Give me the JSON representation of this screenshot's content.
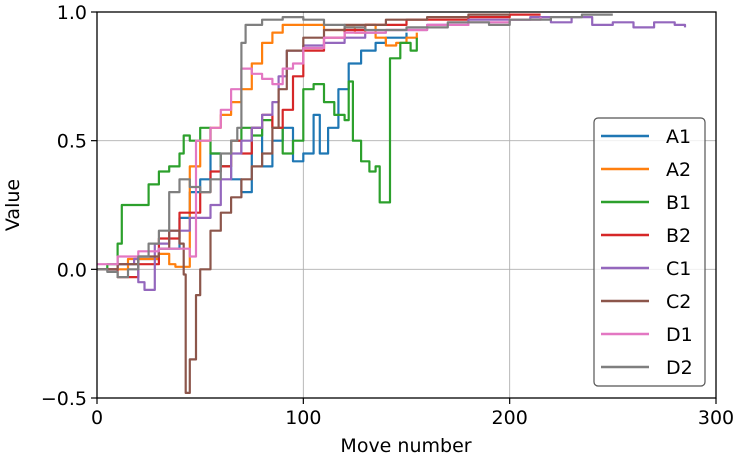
{
  "chart_data": {
    "type": "line",
    "title": "",
    "xlabel": "Move number",
    "ylabel": "Value",
    "xlim": [
      0,
      300
    ],
    "ylim": [
      -0.5,
      1.0
    ],
    "xticks": [
      0,
      100,
      200,
      300
    ],
    "xtick_labels": [
      "0",
      "100",
      "200",
      "300"
    ],
    "yticks": [
      -0.5,
      0.0,
      0.5,
      1.0
    ],
    "ytick_labels": [
      "−0.5",
      "0.0",
      "0.5",
      "1.0"
    ],
    "grid": true,
    "legend_position": "center right",
    "series": [
      {
        "name": "A1",
        "color": "#1f77b4",
        "points": [
          [
            0,
            0.0
          ],
          [
            10,
            0.02
          ],
          [
            20,
            0.04
          ],
          [
            30,
            0.08
          ],
          [
            40,
            0.2
          ],
          [
            45,
            0.3
          ],
          [
            50,
            0.35
          ],
          [
            55,
            0.45
          ],
          [
            60,
            0.4
          ],
          [
            65,
            0.35
          ],
          [
            70,
            0.3
          ],
          [
            75,
            0.55
          ],
          [
            80,
            0.4
          ],
          [
            85,
            0.5
          ],
          [
            90,
            0.55
          ],
          [
            95,
            0.42
          ],
          [
            100,
            0.45
          ],
          [
            105,
            0.6
          ],
          [
            108,
            0.45
          ],
          [
            112,
            0.55
          ],
          [
            117,
            0.7
          ],
          [
            122,
            0.8
          ],
          [
            128,
            0.85
          ],
          [
            135,
            0.88
          ],
          [
            140,
            0.9
          ],
          [
            150,
            0.92
          ]
        ]
      },
      {
        "name": "A2",
        "color": "#ff7f0e",
        "points": [
          [
            0,
            0.0
          ],
          [
            15,
            0.04
          ],
          [
            30,
            0.06
          ],
          [
            35,
            0.02
          ],
          [
            38,
            0.01
          ],
          [
            42,
            0.01
          ],
          [
            45,
            0.4
          ],
          [
            50,
            0.5
          ],
          [
            55,
            0.55
          ],
          [
            60,
            0.6
          ],
          [
            65,
            0.65
          ],
          [
            70,
            0.7
          ],
          [
            75,
            0.8
          ],
          [
            80,
            0.88
          ],
          [
            85,
            0.92
          ],
          [
            90,
            0.95
          ],
          [
            100,
            0.95
          ],
          [
            110,
            0.93
          ],
          [
            120,
            0.94
          ],
          [
            125,
            0.92
          ],
          [
            130,
            0.95
          ],
          [
            135,
            0.9
          ],
          [
            140,
            0.87
          ],
          [
            145,
            0.88
          ],
          [
            150,
            0.9
          ],
          [
            155,
            0.92
          ]
        ]
      },
      {
        "name": "B1",
        "color": "#2ca02c",
        "points": [
          [
            0,
            0.0
          ],
          [
            5,
            0.02
          ],
          [
            10,
            0.1
          ],
          [
            12,
            0.25
          ],
          [
            18,
            0.25
          ],
          [
            25,
            0.33
          ],
          [
            30,
            0.38
          ],
          [
            35,
            0.4
          ],
          [
            40,
            0.45
          ],
          [
            42,
            0.52
          ],
          [
            45,
            0.5
          ],
          [
            50,
            0.55
          ],
          [
            55,
            0.45
          ],
          [
            60,
            0.4
          ],
          [
            65,
            0.5
          ],
          [
            70,
            0.55
          ],
          [
            75,
            0.52
          ],
          [
            80,
            0.58
          ],
          [
            85,
            0.55
          ],
          [
            90,
            0.45
          ],
          [
            95,
            0.5
          ],
          [
            100,
            0.7
          ],
          [
            105,
            0.72
          ],
          [
            110,
            0.65
          ],
          [
            115,
            0.6
          ],
          [
            120,
            0.58
          ],
          [
            122,
            0.73
          ],
          [
            124,
            0.5
          ],
          [
            128,
            0.42
          ],
          [
            132,
            0.38
          ],
          [
            135,
            0.4
          ],
          [
            137,
            0.26
          ],
          [
            140,
            0.26
          ],
          [
            142,
            0.82
          ],
          [
            147,
            0.88
          ],
          [
            152,
            0.85
          ],
          [
            155,
            0.9
          ]
        ]
      },
      {
        "name": "B2",
        "color": "#d62728",
        "points": [
          [
            0,
            0.0
          ],
          [
            10,
            -0.03
          ],
          [
            20,
            0.02
          ],
          [
            30,
            0.12
          ],
          [
            40,
            0.22
          ],
          [
            50,
            0.3
          ],
          [
            55,
            0.38
          ],
          [
            60,
            0.4
          ],
          [
            65,
            0.5
          ],
          [
            70,
            0.45
          ],
          [
            75,
            0.55
          ],
          [
            80,
            0.6
          ],
          [
            85,
            0.55
          ],
          [
            90,
            0.62
          ],
          [
            95,
            0.75
          ],
          [
            100,
            0.85
          ],
          [
            110,
            0.9
          ],
          [
            120,
            0.93
          ],
          [
            130,
            0.95
          ],
          [
            150,
            0.97
          ],
          [
            180,
            0.98
          ],
          [
            200,
            0.99
          ],
          [
            215,
            0.99
          ]
        ]
      },
      {
        "name": "C1",
        "color": "#9467bd",
        "points": [
          [
            0,
            0.0
          ],
          [
            10,
            0.02
          ],
          [
            18,
            0.04
          ],
          [
            20,
            -0.05
          ],
          [
            23,
            -0.08
          ],
          [
            28,
            0.1
          ],
          [
            35,
            0.15
          ],
          [
            45,
            0.2
          ],
          [
            55,
            0.25
          ],
          [
            60,
            0.35
          ],
          [
            65,
            0.45
          ],
          [
            70,
            0.5
          ],
          [
            75,
            0.55
          ],
          [
            80,
            0.6
          ],
          [
            85,
            0.65
          ],
          [
            88,
            0.75
          ],
          [
            92,
            0.85
          ],
          [
            100,
            0.87
          ],
          [
            110,
            0.88
          ],
          [
            120,
            0.9
          ],
          [
            130,
            0.92
          ],
          [
            140,
            0.93
          ],
          [
            160,
            0.95
          ],
          [
            180,
            0.97
          ],
          [
            200,
            0.97
          ],
          [
            210,
            0.98
          ],
          [
            220,
            0.96
          ],
          [
            230,
            0.98
          ],
          [
            240,
            0.95
          ],
          [
            250,
            0.96
          ],
          [
            260,
            0.94
          ],
          [
            270,
            0.96
          ],
          [
            280,
            0.95
          ],
          [
            285,
            0.94
          ]
        ]
      },
      {
        "name": "C2",
        "color": "#8c564b",
        "points": [
          [
            0,
            0.0
          ],
          [
            10,
            0.02
          ],
          [
            20,
            0.05
          ],
          [
            30,
            0.08
          ],
          [
            35,
            0.15
          ],
          [
            40,
            0.1
          ],
          [
            42,
            -0.02
          ],
          [
            43,
            -0.48
          ],
          [
            45,
            -0.35
          ],
          [
            48,
            -0.1
          ],
          [
            50,
            0.0
          ],
          [
            55,
            0.15
          ],
          [
            60,
            0.22
          ],
          [
            65,
            0.28
          ],
          [
            70,
            0.35
          ],
          [
            75,
            0.4
          ],
          [
            80,
            0.45
          ],
          [
            85,
            0.55
          ],
          [
            88,
            0.7
          ],
          [
            92,
            0.85
          ],
          [
            100,
            0.9
          ],
          [
            110,
            0.93
          ],
          [
            120,
            0.95
          ],
          [
            140,
            0.97
          ],
          [
            160,
            0.98
          ],
          [
            180,
            0.99
          ],
          [
            200,
            0.99
          ]
        ]
      },
      {
        "name": "D1",
        "color": "#e377c2",
        "points": [
          [
            0,
            0.02
          ],
          [
            10,
            0.05
          ],
          [
            20,
            0.07
          ],
          [
            30,
            0.08
          ],
          [
            40,
            0.08
          ],
          [
            45,
            0.05
          ],
          [
            48,
            0.5
          ],
          [
            52,
            0.5
          ],
          [
            55,
            0.55
          ],
          [
            60,
            0.62
          ],
          [
            65,
            0.7
          ],
          [
            70,
            0.78
          ],
          [
            75,
            0.76
          ],
          [
            80,
            0.74
          ],
          [
            85,
            0.72
          ],
          [
            90,
            0.78
          ],
          [
            95,
            0.8
          ],
          [
            100,
            0.86
          ],
          [
            110,
            0.9
          ],
          [
            120,
            0.92
          ],
          [
            130,
            0.92
          ],
          [
            140,
            0.93
          ],
          [
            160,
            0.95
          ],
          [
            180,
            0.96
          ],
          [
            200,
            0.97
          ],
          [
            215,
            0.98
          ]
        ]
      },
      {
        "name": "D2",
        "color": "#7f7f7f",
        "points": [
          [
            0,
            0.0
          ],
          [
            5,
            -0.01
          ],
          [
            10,
            -0.03
          ],
          [
            15,
            0.0
          ],
          [
            20,
            0.05
          ],
          [
            25,
            0.1
          ],
          [
            30,
            0.15
          ],
          [
            35,
            0.3
          ],
          [
            40,
            0.35
          ],
          [
            45,
            0.32
          ],
          [
            50,
            0.3
          ],
          [
            55,
            0.35
          ],
          [
            60,
            0.45
          ],
          [
            65,
            0.5
          ],
          [
            68,
            0.55
          ],
          [
            70,
            0.88
          ],
          [
            72,
            0.95
          ],
          [
            80,
            0.97
          ],
          [
            90,
            0.98
          ],
          [
            100,
            0.97
          ],
          [
            110,
            0.95
          ],
          [
            120,
            0.94
          ],
          [
            130,
            0.93
          ],
          [
            150,
            0.94
          ],
          [
            170,
            0.96
          ],
          [
            190,
            0.95
          ],
          [
            200,
            0.97
          ],
          [
            220,
            0.98
          ],
          [
            235,
            0.99
          ],
          [
            250,
            0.99
          ]
        ]
      }
    ]
  },
  "legend": {
    "items": [
      {
        "label": "A1",
        "color": "#1f77b4"
      },
      {
        "label": "A2",
        "color": "#ff7f0e"
      },
      {
        "label": "B1",
        "color": "#2ca02c"
      },
      {
        "label": "B2",
        "color": "#d62728"
      },
      {
        "label": "C1",
        "color": "#9467bd"
      },
      {
        "label": "C2",
        "color": "#8c564b"
      },
      {
        "label": "D1",
        "color": "#e377c2"
      },
      {
        "label": "D2",
        "color": "#7f7f7f"
      }
    ]
  }
}
